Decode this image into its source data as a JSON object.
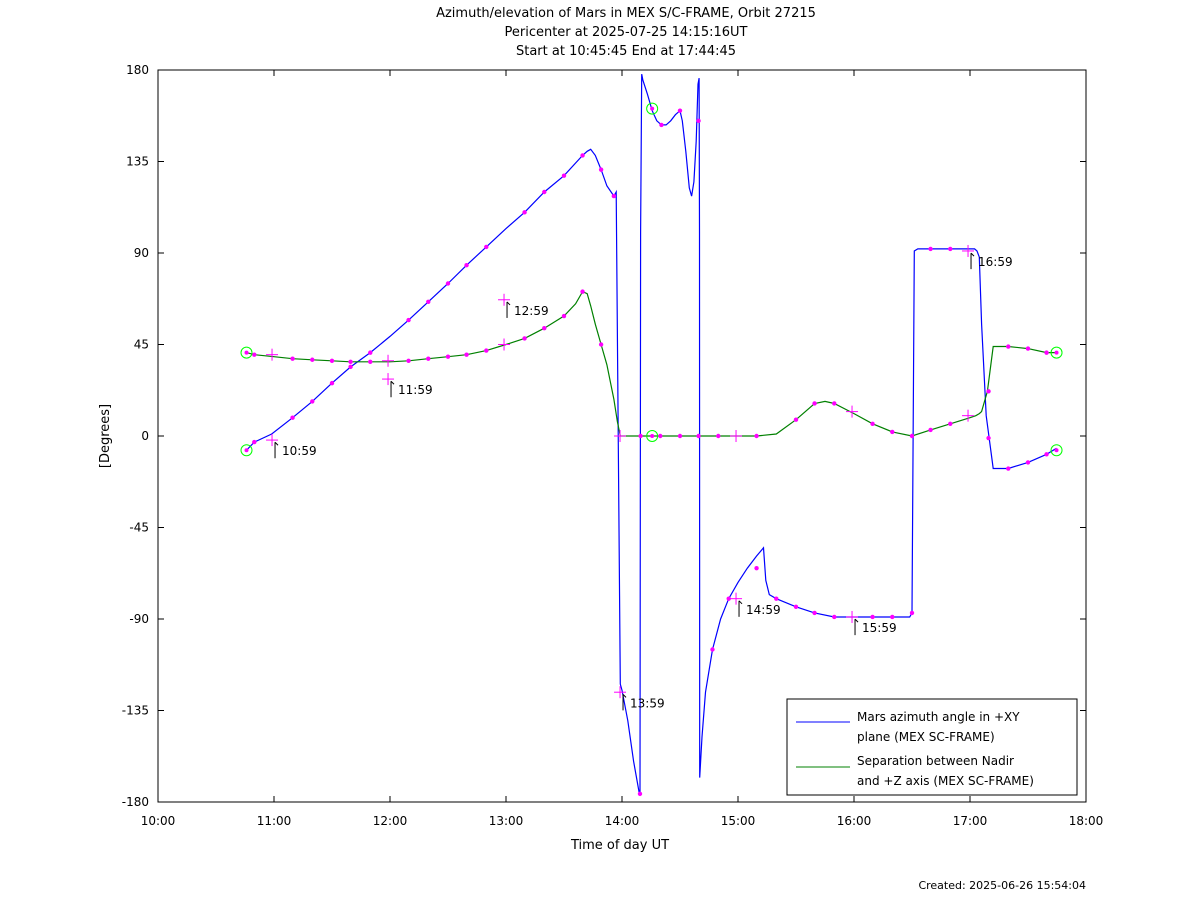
{
  "chart_data": {
    "type": "line",
    "title_lines": [
      "Azimuth/elevation of Mars in MEX S/C-FRAME,  Orbit 27215",
      "Pericenter at 2025-07-25 14:15:16UT",
      "Start at 10:45:45 End at 17:44:45"
    ],
    "xlabel": "Time of day UT",
    "ylabel": "[Degrees]",
    "xlim": [
      10.0,
      18.0
    ],
    "ylim": [
      -180,
      180
    ],
    "x_ticks": [
      "10:00",
      "11:00",
      "12:00",
      "13:00",
      "14:00",
      "15:00",
      "16:00",
      "17:00",
      "18:00"
    ],
    "y_ticks": [
      "180",
      "135",
      "90",
      "45",
      "0",
      "-45",
      "-90",
      "-135",
      "-180"
    ],
    "grid": false,
    "legend_position": "bottom-right",
    "colors": {
      "azimuth": "#0000ff",
      "separation": "#008000",
      "markers": "#ff00ff",
      "start_end": "#00ff00"
    },
    "series": [
      {
        "name": "Mars azimuth angle in +XY\nplane (MEX SC-FRAME)",
        "legend_lines": [
          "Mars azimuth angle in +XY",
          "plane (MEX SC-FRAME)"
        ],
        "color": "#0000ff",
        "x": [
          10.763,
          10.83,
          10.98,
          11.16,
          11.33,
          11.5,
          11.66,
          11.83,
          12.0,
          12.16,
          12.33,
          12.5,
          12.66,
          12.83,
          13.0,
          13.16,
          13.33,
          13.5,
          13.66,
          13.7,
          13.73,
          13.77,
          13.82,
          13.87,
          13.93,
          13.95,
          13.985,
          14.0,
          14.05,
          14.1,
          14.15,
          14.155,
          14.16,
          14.17,
          14.18,
          14.22,
          14.26,
          14.3,
          14.34,
          14.38,
          14.42,
          14.46,
          14.5,
          14.52,
          14.55,
          14.58,
          14.6,
          14.62,
          14.64,
          14.655,
          14.665,
          14.668,
          14.67,
          14.69,
          14.72,
          14.78,
          14.85,
          14.92,
          15.0,
          15.08,
          15.16,
          15.22,
          15.24,
          15.27,
          15.33,
          15.5,
          15.66,
          15.83,
          16.0,
          16.16,
          16.33,
          16.48,
          16.5,
          16.52,
          16.55,
          16.66,
          16.83,
          17.0,
          17.04,
          17.06,
          17.08,
          17.1,
          17.14,
          17.2,
          17.33,
          17.5,
          17.66,
          17.746
        ],
        "y": [
          -7,
          -3,
          1,
          9,
          17,
          26,
          34,
          41,
          49,
          57,
          66,
          75,
          84,
          93,
          102,
          110,
          120,
          128,
          138,
          140,
          141,
          138,
          131,
          123,
          118,
          120,
          -122,
          -125,
          -140,
          -160,
          -176,
          -176,
          100,
          178,
          175,
          168,
          160,
          155,
          153,
          153,
          155,
          158,
          160,
          155,
          140,
          122,
          118,
          125,
          145,
          173,
          176,
          100,
          -168,
          -148,
          -126,
          -105,
          -90,
          -80,
          -72,
          -65,
          -59,
          -55,
          -71,
          -78,
          -80,
          -84,
          -87,
          -89,
          -89,
          -89,
          -89,
          -89,
          -87,
          91,
          92,
          92,
          92,
          92,
          92,
          91,
          88,
          55,
          10,
          -16,
          -16,
          -13,
          -9,
          -6
        ],
        "points_note": "segment at x in data units; y in degrees"
      },
      {
        "name": "Separation between Nadir\nand +Z axis (MEX SC-FRAME)",
        "legend_lines": [
          "Separation between Nadir",
          "and +Z axis (MEX SC-FRAME)"
        ],
        "color": "#008000",
        "x": [
          10.763,
          10.83,
          11.0,
          11.16,
          11.33,
          11.5,
          11.66,
          11.83,
          12.0,
          12.16,
          12.33,
          12.5,
          12.66,
          12.83,
          13.0,
          13.16,
          13.33,
          13.5,
          13.6,
          13.66,
          13.7,
          13.73,
          13.77,
          13.82,
          13.87,
          13.93,
          13.96,
          13.985,
          14.0,
          14.27,
          14.5,
          14.66,
          14.83,
          15.0,
          15.16,
          15.33,
          15.5,
          15.66,
          15.75,
          15.83,
          16.0,
          16.16,
          16.33,
          16.5,
          16.66,
          16.83,
          17.0,
          17.05,
          17.08,
          17.1,
          17.15,
          17.2,
          17.33,
          17.5,
          17.66,
          17.746
        ],
        "y": [
          41,
          40,
          39,
          38,
          37.5,
          37,
          36.5,
          36.5,
          36.5,
          37,
          38,
          39,
          40,
          42,
          45,
          48,
          53,
          59,
          65,
          71,
          70,
          64,
          55,
          45,
          35,
          18,
          7,
          0,
          0,
          0,
          0,
          0,
          0,
          0,
          0,
          1,
          8,
          16,
          17,
          16,
          11,
          6,
          2,
          0,
          3,
          6,
          9,
          10,
          11,
          12,
          22,
          44,
          44,
          43,
          41,
          41
        ]
      }
    ],
    "magenta_dots": {
      "azimuth": [
        [
          10.83,
          -3
        ],
        [
          11.16,
          9
        ],
        [
          11.33,
          17
        ],
        [
          11.5,
          26
        ],
        [
          11.66,
          34
        ],
        [
          11.83,
          41
        ],
        [
          12.16,
          57
        ],
        [
          12.33,
          66
        ],
        [
          12.5,
          75
        ],
        [
          12.66,
          84
        ],
        [
          12.83,
          93
        ],
        [
          13.16,
          110
        ],
        [
          13.33,
          120
        ],
        [
          13.5,
          128
        ],
        [
          13.66,
          138
        ],
        [
          13.82,
          131
        ],
        [
          13.93,
          118
        ],
        [
          14.155,
          -176
        ],
        [
          14.34,
          153
        ],
        [
          14.5,
          160
        ],
        [
          14.66,
          155
        ],
        [
          14.78,
          -105
        ],
        [
          14.92,
          -80
        ],
        [
          15.16,
          -65
        ],
        [
          15.33,
          -80
        ],
        [
          15.5,
          -84
        ],
        [
          15.66,
          -87
        ],
        [
          15.83,
          -89
        ],
        [
          16.16,
          -89
        ],
        [
          16.33,
          -89
        ],
        [
          16.5,
          -87
        ],
        [
          16.66,
          92
        ],
        [
          16.83,
          92
        ],
        [
          17.16,
          -1
        ],
        [
          17.33,
          -16
        ],
        [
          17.5,
          -13
        ],
        [
          17.66,
          -9
        ]
      ],
      "separation": [
        [
          10.83,
          40
        ],
        [
          11.16,
          38
        ],
        [
          11.33,
          37.5
        ],
        [
          11.5,
          37
        ],
        [
          11.66,
          36.5
        ],
        [
          11.83,
          36.5
        ],
        [
          12.16,
          37
        ],
        [
          12.33,
          38
        ],
        [
          12.5,
          39
        ],
        [
          12.66,
          40
        ],
        [
          12.83,
          42
        ],
        [
          13.16,
          48
        ],
        [
          13.33,
          53
        ],
        [
          13.5,
          59
        ],
        [
          13.66,
          71
        ],
        [
          13.82,
          45
        ],
        [
          14.16,
          0
        ],
        [
          14.33,
          0
        ],
        [
          14.5,
          0
        ],
        [
          14.66,
          0
        ],
        [
          14.83,
          0
        ],
        [
          15.16,
          0
        ],
        [
          15.5,
          8
        ],
        [
          15.66,
          16
        ],
        [
          15.83,
          16
        ],
        [
          16.16,
          6
        ],
        [
          16.33,
          2
        ],
        [
          16.5,
          0
        ],
        [
          16.66,
          3
        ],
        [
          16.83,
          6
        ],
        [
          17.16,
          22
        ],
        [
          17.33,
          44
        ],
        [
          17.5,
          43
        ],
        [
          17.66,
          41
        ]
      ]
    },
    "hour_crosses": [
      [
        10.983,
        -2
      ],
      [
        10.983,
        40
      ],
      [
        11.983,
        28
      ],
      [
        11.983,
        37
      ],
      [
        12.983,
        67
      ],
      [
        12.983,
        45
      ],
      [
        13.983,
        -126
      ],
      [
        13.983,
        0
      ],
      [
        14.983,
        -80
      ],
      [
        14.983,
        0
      ],
      [
        15.983,
        -89
      ],
      [
        15.983,
        12
      ],
      [
        16.983,
        91
      ],
      [
        16.983,
        10
      ]
    ],
    "start_end_circles": [
      [
        10.763,
        -7
      ],
      [
        10.763,
        41
      ],
      [
        14.26,
        0
      ],
      [
        14.26,
        161
      ],
      [
        17.746,
        -7
      ],
      [
        17.746,
        41
      ]
    ],
    "annotations": [
      {
        "text": "10:59",
        "x": 10.983,
        "y": -7
      },
      {
        "text": "11:59",
        "x": 11.983,
        "y": 23
      },
      {
        "text": "12:59",
        "x": 12.983,
        "y": 62
      },
      {
        "text": "13:59",
        "x": 13.983,
        "y": -131
      },
      {
        "text": "14:59",
        "x": 14.983,
        "y": -85
      },
      {
        "text": "15:59",
        "x": 15.983,
        "y": -94
      },
      {
        "text": "16:59",
        "x": 16.983,
        "y": 86
      }
    ]
  },
  "footer": {
    "created": "Created: 2025-06-26 15:54:04"
  }
}
